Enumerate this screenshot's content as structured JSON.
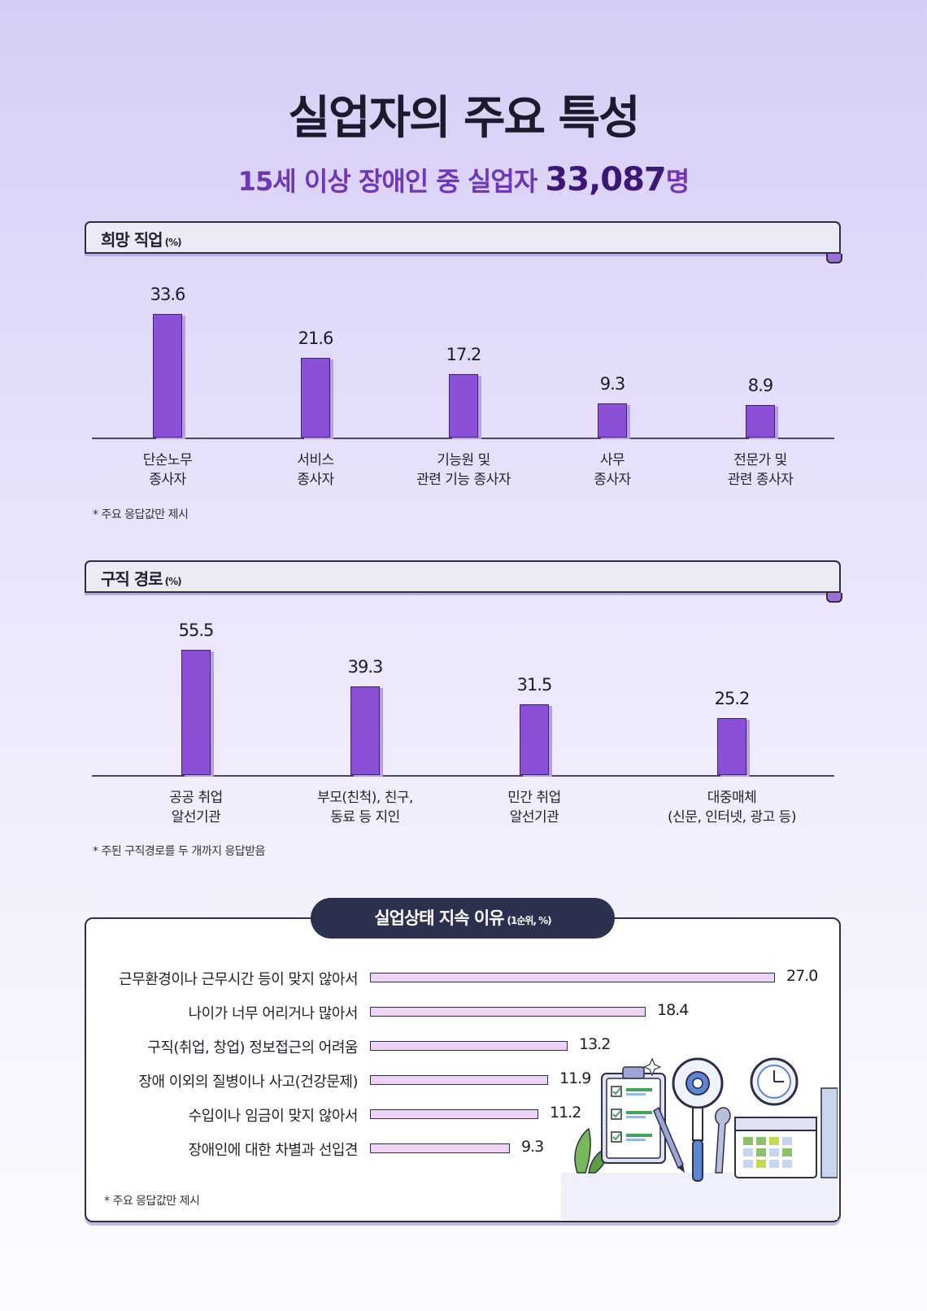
{
  "title": "실업자의 주요 특성",
  "subtitle": {
    "prefix": "15세 이상 장애인 중 실업자 ",
    "number": "33,087",
    "suffix": "명"
  },
  "chart_data": [
    {
      "type": "bar",
      "title": "희망 직업",
      "unit": "(%)",
      "categories": [
        "단순노무\n종사자",
        "서비스\n종사자",
        "기능원 및\n관련 기능 종사자",
        "사무\n종사자",
        "전문가 및\n관련 종사자"
      ],
      "values": [
        33.6,
        21.6,
        17.2,
        9.3,
        8.9
      ],
      "value_labels": [
        "33.6",
        "21.6",
        "17.2",
        "9.3",
        "8.9"
      ],
      "ylim": [
        0,
        33.6
      ],
      "note": "* 주요 응답값만 제시"
    },
    {
      "type": "bar",
      "title": "구직 경로",
      "unit": "(%)",
      "categories": [
        "공공 취업\n알선기관",
        "부모(친척), 친구,\n동료 등 지인",
        "민간 취업\n알선기관",
        "대중매체\n(신문, 인터넷, 광고 등)"
      ],
      "values": [
        55.5,
        39.3,
        31.5,
        25.2
      ],
      "value_labels": [
        "55.5",
        "39.3",
        "31.5",
        "25.2"
      ],
      "ylim": [
        0,
        55.5
      ],
      "note": "* 주된 구직경로를 두 개까지 응답받음"
    },
    {
      "type": "bar",
      "orientation": "horizontal",
      "title": "실업상태 지속 이유",
      "unit": "(1순위, %)",
      "categories": [
        "근무환경이나 근무시간 등이 맞지 않아서",
        "나이가 너무 어리거나 많아서",
        "구직(취업, 창업) 정보접근의 어려움",
        "장애 이외의 질병이나 사고(건강문제)",
        "수입이나 임금이 맞지 않아서",
        "장애인에 대한 차별과 선입견"
      ],
      "values": [
        27.0,
        18.4,
        13.2,
        11.9,
        11.2,
        9.3
      ],
      "value_labels": [
        "27.0",
        "18.4",
        "13.2",
        "11.9",
        "11.2",
        "9.3"
      ],
      "xlim": [
        0,
        27.0
      ],
      "note": "* 주요 응답값만 제시"
    }
  ],
  "colors": {
    "bar": "#8b4fd8",
    "hbar": "#efd3f4",
    "accent": "#6f37b8",
    "dark": "#2c3150"
  },
  "icons": [
    "clipboard-checklist-icon",
    "magnifier-gear-icon",
    "clock-icon",
    "calendar-icon",
    "wrench-icon",
    "pencil-icon"
  ]
}
